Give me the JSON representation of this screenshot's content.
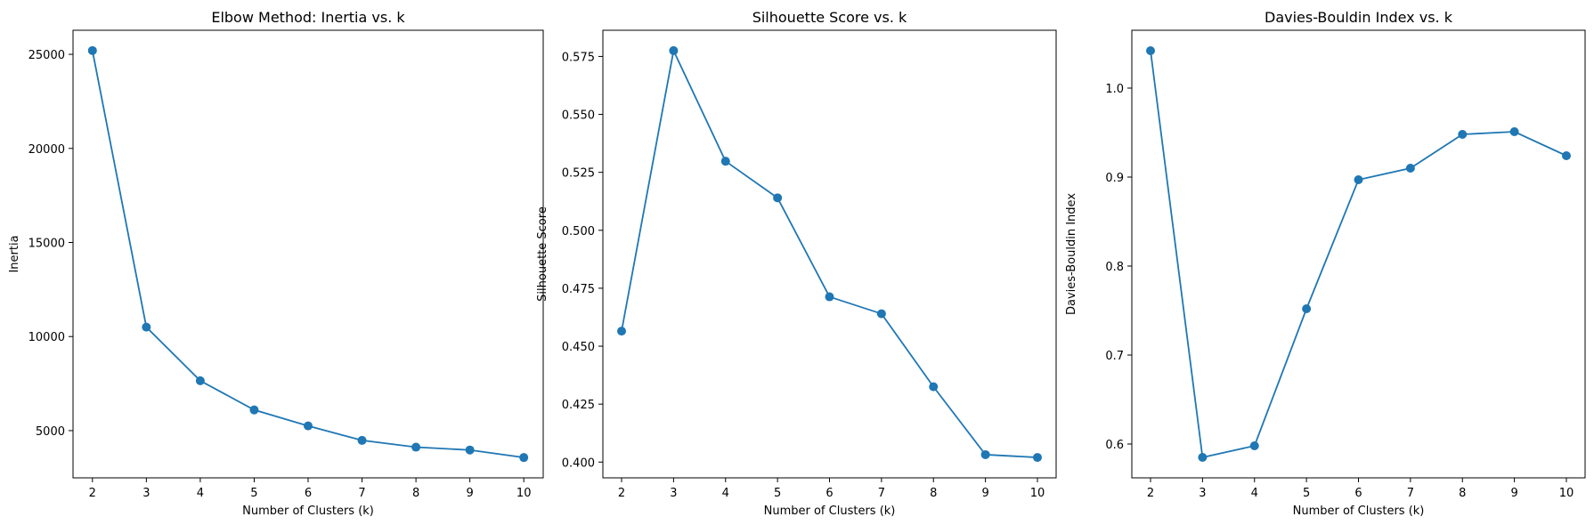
{
  "chart_data": [
    {
      "type": "line",
      "title": "Elbow Method: Inertia vs. k",
      "xlabel": "Number of Clusters (k)",
      "ylabel": "Inertia",
      "x": [
        2,
        3,
        4,
        5,
        6,
        7,
        8,
        9,
        10
      ],
      "values": [
        25200,
        10500,
        7650,
        6100,
        5250,
        4480,
        4120,
        3970,
        3570
      ],
      "xticks": [
        2,
        3,
        4,
        5,
        6,
        7,
        8,
        9,
        10
      ],
      "yticks": [
        5000,
        10000,
        15000,
        20000,
        25000
      ],
      "xlim": [
        1.64,
        10.36
      ],
      "ylim": [
        2490,
        26280
      ],
      "color": "#1f77b4",
      "marker": "circle",
      "grid": false
    },
    {
      "type": "line",
      "title": "Silhouette Score vs. k",
      "xlabel": "Number of Clusters (k)",
      "ylabel": "Silhouette Score",
      "x": [
        2,
        3,
        4,
        5,
        6,
        7,
        8,
        9,
        10
      ],
      "values": [
        0.4565,
        0.5775,
        0.5298,
        0.514,
        0.4713,
        0.464,
        0.4325,
        0.4032,
        0.402
      ],
      "xticks": [
        2,
        3,
        4,
        5,
        6,
        7,
        8,
        9,
        10
      ],
      "yticks": [
        0.4,
        0.425,
        0.45,
        0.475,
        0.5,
        0.525,
        0.55,
        0.575
      ],
      "ytick_labels": [
        "0.400",
        "0.425",
        "0.450",
        "0.475",
        "0.500",
        "0.525",
        "0.550",
        "0.575"
      ],
      "xlim": [
        1.64,
        10.36
      ],
      "ylim": [
        0.3932,
        0.5863
      ],
      "color": "#1f77b4",
      "marker": "circle",
      "grid": false
    },
    {
      "type": "line",
      "title": "Davies-Bouldin Index vs. k",
      "xlabel": "Number of Clusters (k)",
      "ylabel": "Davies-Bouldin Index",
      "x": [
        2,
        3,
        4,
        5,
        6,
        7,
        8,
        9,
        10
      ],
      "values": [
        1.042,
        0.585,
        0.598,
        0.752,
        0.897,
        0.91,
        0.948,
        0.951,
        0.924
      ],
      "xticks": [
        2,
        3,
        4,
        5,
        6,
        7,
        8,
        9,
        10
      ],
      "yticks": [
        0.6,
        0.7,
        0.8,
        0.9,
        1.0
      ],
      "ytick_labels": [
        "0.6",
        "0.7",
        "0.8",
        "0.9",
        "1.0"
      ],
      "xlim": [
        1.64,
        10.36
      ],
      "ylim": [
        0.562,
        1.065
      ],
      "color": "#1f77b4",
      "marker": "circle",
      "grid": false
    }
  ]
}
